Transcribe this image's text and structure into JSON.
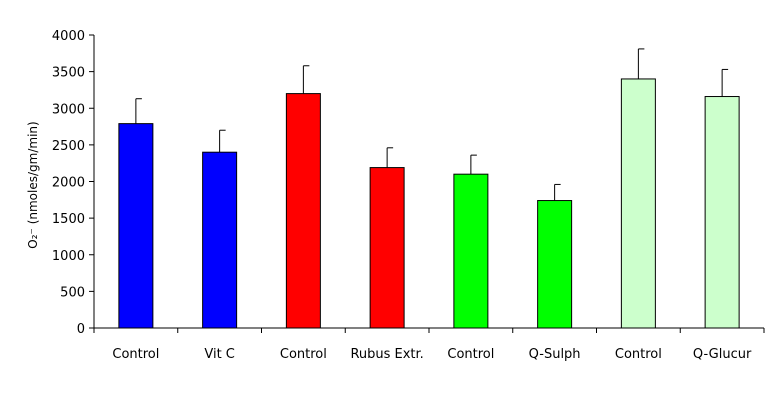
{
  "chart_data": {
    "type": "bar",
    "title": "",
    "xlabel": "",
    "ylabel": "O₂⁻ (nmoles/gm/min)",
    "ylim": [
      0,
      4000
    ],
    "yticks": [
      0,
      500,
      1000,
      1500,
      2000,
      2500,
      3000,
      3500,
      4000
    ],
    "grid": false,
    "legend": "none",
    "categories": [
      "Control",
      "Vit C",
      "Control",
      "Rubus Extr.",
      "Control",
      "Q-Sulph",
      "Control",
      "Q-Glucur"
    ],
    "values": [
      2790,
      2400,
      3200,
      2190,
      2100,
      1740,
      3400,
      3160
    ],
    "errors": [
      340,
      300,
      380,
      270,
      260,
      220,
      410,
      370
    ],
    "colors": [
      "#0000ff",
      "#0000ff",
      "#ff0000",
      "#ff0000",
      "#00ff00",
      "#00ff00",
      "#ccffcc",
      "#ccffcc"
    ]
  }
}
